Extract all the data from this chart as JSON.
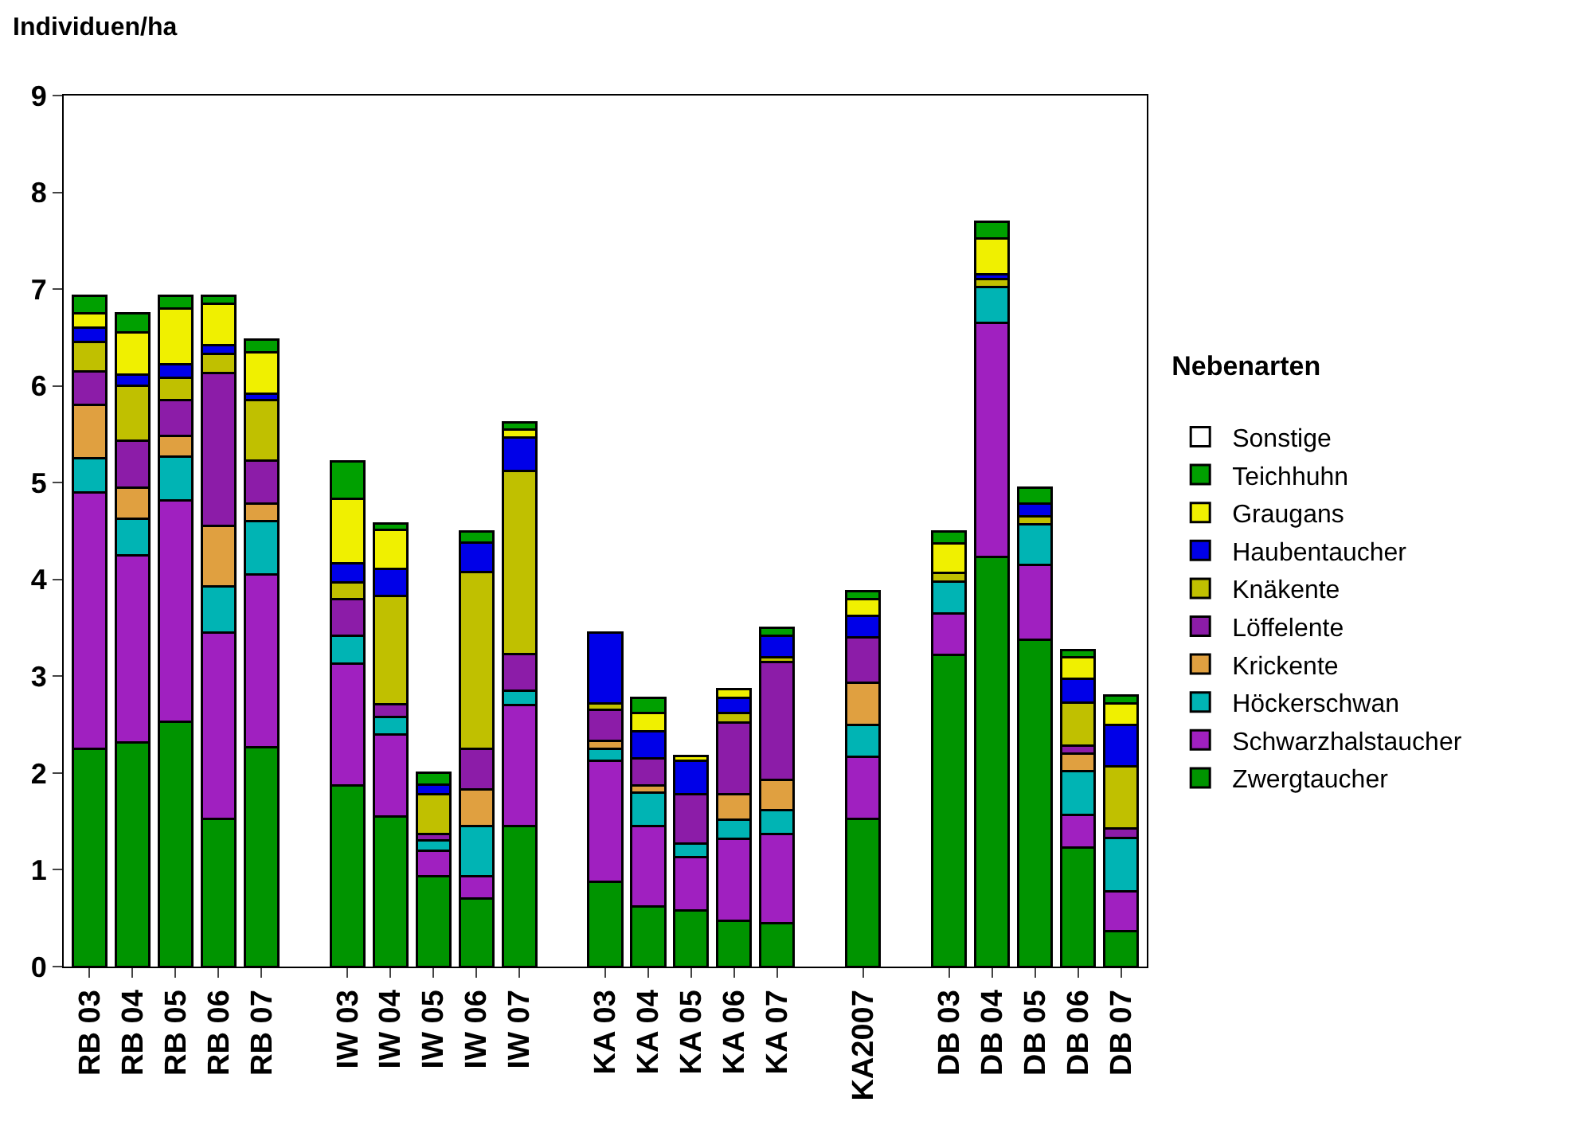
{
  "chart_data": {
    "type": "bar",
    "stacked": true,
    "ylabel": "Individuen/ha",
    "legend_title": "Nebenarten",
    "legend": "right",
    "categories": [
      "RB 03",
      "RB 04",
      "RB 05",
      "RB 06",
      "RB 07",
      null,
      "IW 03",
      "IW 04",
      "IW 05",
      "IW 06",
      "IW 07",
      null,
      "KA 03",
      "KA 04",
      "KA 05",
      "KA 06",
      "KA 07",
      null,
      "KA2007",
      null,
      "DB 03",
      "DB 04",
      "DB 05",
      "DB 06",
      "DB 07"
    ],
    "ylim": [
      0,
      9
    ],
    "yticks": [
      0,
      1,
      2,
      3,
      4,
      5,
      6,
      7,
      8,
      9
    ],
    "series": [
      {
        "name": "Zwergtaucher",
        "color": "#009400",
        "values": [
          2.25,
          2.32,
          2.53,
          1.53,
          2.27,
          null,
          1.87,
          1.55,
          0.93,
          0.7,
          1.45,
          null,
          0.88,
          0.62,
          0.58,
          0.47,
          0.45,
          null,
          1.53,
          null,
          3.22,
          4.23,
          3.38,
          1.23,
          0.37
        ]
      },
      {
        "name": "Schwarzhalstaucher",
        "color": "#a020c0",
        "values": [
          2.65,
          1.93,
          2.29,
          1.92,
          1.78,
          null,
          1.26,
          0.85,
          0.27,
          0.23,
          1.25,
          null,
          1.25,
          0.83,
          0.55,
          0.85,
          0.92,
          null,
          0.64,
          null,
          0.43,
          2.42,
          0.77,
          0.34,
          0.41
        ]
      },
      {
        "name": "Höckerschwan",
        "color": "#00b4b4",
        "values": [
          0.35,
          0.38,
          0.45,
          0.48,
          0.55,
          null,
          0.29,
          0.18,
          0.1,
          0.52,
          0.15,
          null,
          0.12,
          0.35,
          0.14,
          0.2,
          0.25,
          null,
          0.33,
          null,
          0.33,
          0.37,
          0.42,
          0.45,
          0.55
        ]
      },
      {
        "name": "Krickente",
        "color": "#e0a040",
        "values": [
          0.55,
          0.32,
          0.21,
          0.62,
          0.18,
          null,
          null,
          null,
          null,
          0.38,
          null,
          null,
          0.08,
          0.07,
          null,
          0.26,
          0.31,
          null,
          0.43,
          null,
          null,
          null,
          null,
          0.18,
          null
        ]
      },
      {
        "name": "Löffelente",
        "color": "#8c1ca8",
        "values": [
          0.35,
          0.48,
          0.37,
          1.58,
          0.45,
          null,
          0.38,
          0.13,
          0.07,
          0.42,
          0.38,
          null,
          0.32,
          0.28,
          0.51,
          0.74,
          1.22,
          null,
          0.47,
          null,
          null,
          null,
          null,
          0.08,
          0.1
        ]
      },
      {
        "name": "Knäkente",
        "color": "#c0c000",
        "values": [
          0.3,
          0.57,
          0.23,
          0.2,
          0.62,
          null,
          0.17,
          1.12,
          0.41,
          1.83,
          1.89,
          null,
          0.07,
          null,
          null,
          0.1,
          0.05,
          null,
          null,
          null,
          0.09,
          0.08,
          0.08,
          0.45,
          0.64
        ]
      },
      {
        "name": "Haubentaucher",
        "color": "#0000e8",
        "values": [
          0.15,
          0.12,
          0.14,
          0.09,
          0.07,
          null,
          0.2,
          0.28,
          0.1,
          0.3,
          0.35,
          null,
          0.73,
          0.28,
          0.35,
          0.16,
          0.22,
          null,
          0.22,
          null,
          null,
          0.05,
          0.13,
          0.24,
          0.43
        ]
      },
      {
        "name": "Graugans",
        "color": "#f0f000",
        "values": [
          0.15,
          0.43,
          0.58,
          0.43,
          0.43,
          null,
          0.66,
          0.4,
          null,
          null,
          0.08,
          null,
          null,
          0.19,
          0.05,
          0.09,
          null,
          null,
          0.18,
          null,
          0.3,
          0.37,
          null,
          0.23,
          0.22
        ]
      },
      {
        "name": "Teichhuhn",
        "color": "#00a000",
        "values": [
          0.18,
          0.2,
          0.13,
          0.08,
          0.13,
          null,
          0.39,
          0.07,
          0.12,
          0.12,
          0.07,
          null,
          null,
          0.16,
          null,
          null,
          0.08,
          null,
          0.08,
          null,
          0.13,
          0.18,
          0.17,
          0.07,
          0.08
        ]
      },
      {
        "name": "Sonstige",
        "color": "#ffffff",
        "values": [
          null,
          null,
          null,
          null,
          null,
          null,
          null,
          null,
          null,
          null,
          null,
          null,
          null,
          null,
          null,
          null,
          null,
          null,
          null,
          null,
          null,
          null,
          null,
          null,
          null
        ]
      }
    ]
  }
}
